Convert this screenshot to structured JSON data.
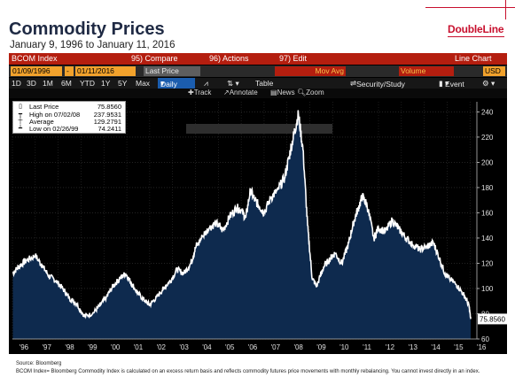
{
  "slide": {
    "title": "Commodity Prices",
    "subtitle": "January 9, 1996 to January 11, 2016",
    "logo": "DoubleLine",
    "source": "Source: Bloomberg",
    "disclaimer": "BCOM Index= Bloomberg Commodity Index is calculated on an excess return basis and reflects commodity futures price movements with monthly rebalancing. You cannot invest directly in an index."
  },
  "toolbar": {
    "ticker": "BCOM Index",
    "compare": "95) Compare",
    "actions": "96) Actions",
    "edit": "97) Edit",
    "chart_type": "Line Chart",
    "start_date": "01/09/1996",
    "end_date": "01/11/2016",
    "field": "Last Price",
    "mov_avg": "Mov Avg",
    "volume": "Volume",
    "currency": "USD",
    "ranges": [
      "1D",
      "3D",
      "1M",
      "6M",
      "YTD",
      "1Y",
      "5Y",
      "Max"
    ],
    "frequency": "Daily",
    "table": "Table",
    "security_study": "Security/Study",
    "event": "Event",
    "tools": [
      "Track",
      "Annotate",
      "News",
      "Zoom"
    ]
  },
  "legend": {
    "last_label": "Last Price",
    "last_value": "75.8560",
    "high_label": "High on 07/02/08",
    "high_value": "237.9531",
    "avg_label": "Average",
    "avg_value": "129.2791",
    "low_label": "Low on 02/26/99",
    "low_value": "74.2411"
  },
  "chart_data": {
    "type": "area",
    "x_ticks": [
      "'96",
      "'97",
      "'98",
      "'99",
      "'00",
      "'01",
      "'02",
      "'03",
      "'04",
      "'05",
      "'06",
      "'07",
      "'08",
      "'09",
      "'10",
      "'11",
      "'12",
      "'13",
      "'14",
      "'15",
      "'16"
    ],
    "y_ticks": [
      60,
      80,
      100,
      120,
      140,
      160,
      180,
      200,
      220,
      240
    ],
    "ylim": [
      60,
      248
    ],
    "last_value_label": "75.8560",
    "x": [
      1996.02,
      1996.3,
      1996.6,
      1997.0,
      1997.3,
      1997.6,
      1997.9,
      1998.2,
      1998.5,
      1998.8,
      1999.15,
      1999.5,
      1999.8,
      2000.1,
      2000.4,
      2000.7,
      2000.95,
      2001.2,
      2001.5,
      2001.8,
      2002.0,
      2002.3,
      2002.6,
      2002.9,
      2003.2,
      2003.5,
      2003.8,
      2004.0,
      2004.3,
      2004.6,
      2004.9,
      2005.2,
      2005.5,
      2005.8,
      2006.0,
      2006.2,
      2006.4,
      2006.6,
      2006.8,
      2007.0,
      2007.3,
      2007.6,
      2007.9,
      2008.1,
      2008.3,
      2008.5,
      2008.7,
      2008.9,
      2009.1,
      2009.3,
      2009.6,
      2009.9,
      2010.1,
      2010.4,
      2010.7,
      2010.9,
      2011.1,
      2011.3,
      2011.5,
      2011.8,
      2012.0,
      2012.3,
      2012.6,
      2012.9,
      2013.2,
      2013.5,
      2013.8,
      2014.1,
      2014.4,
      2014.6,
      2014.9,
      2015.1,
      2015.4,
      2015.7,
      2015.95,
      2016.03
    ],
    "values": [
      112,
      118,
      122,
      126,
      118,
      110,
      106,
      100,
      92,
      88,
      78,
      80,
      86,
      93,
      102,
      108,
      112,
      104,
      96,
      90,
      87,
      93,
      100,
      106,
      115,
      112,
      120,
      132,
      141,
      148,
      152,
      146,
      157,
      164,
      162,
      156,
      178,
      170,
      165,
      160,
      172,
      178,
      188,
      205,
      222,
      238,
      210,
      150,
      108,
      102,
      117,
      124,
      128,
      120,
      136,
      152,
      163,
      173,
      166,
      140,
      148,
      145,
      154,
      147,
      140,
      135,
      131,
      133,
      136,
      127,
      112,
      108,
      103,
      96,
      87,
      75.856
    ]
  }
}
